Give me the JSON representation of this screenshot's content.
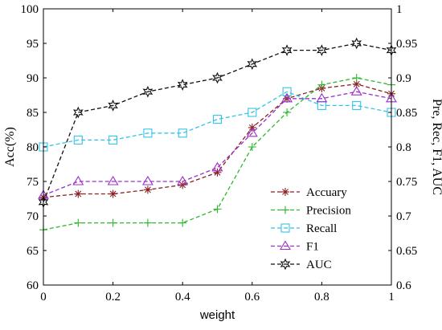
{
  "chart_data": {
    "type": "line",
    "xlabel": "weight",
    "ylabel_left": "Acc(%)",
    "ylabel_right": "Pre, Rec, F1, AUC",
    "xlim": [
      0,
      1
    ],
    "ylim_left": [
      60,
      100
    ],
    "ylim_right": [
      0.6,
      1.0
    ],
    "x_ticks": [
      "0",
      "0.2",
      "0.4",
      "0.6",
      "0.8",
      "1"
    ],
    "y_left_ticks": [
      "60",
      "65",
      "70",
      "75",
      "80",
      "85",
      "90",
      "95",
      "100"
    ],
    "y_right_ticks": [
      "0.6",
      "0.65",
      "0.7",
      "0.75",
      "0.8",
      "0.85",
      "0.9",
      "0.95",
      "1"
    ],
    "grid": false,
    "legend_position": "bottom-right",
    "x": [
      0,
      0.1,
      0.2,
      0.3,
      0.4,
      0.5,
      0.6,
      0.7,
      0.8,
      0.9,
      1.0
    ],
    "series": [
      {
        "name": "Accuary",
        "axis": "left",
        "color": "#8b2020",
        "marker": "asterisk",
        "values": [
          72.7,
          73.2,
          73.2,
          73.8,
          74.5,
          76.3,
          82.8,
          87.0,
          88.5,
          89.1,
          87.7
        ]
      },
      {
        "name": "Precision",
        "axis": "right",
        "color": "#2db82d",
        "marker": "plus",
        "values": [
          0.68,
          0.69,
          0.69,
          0.69,
          0.69,
          0.71,
          0.8,
          0.85,
          0.89,
          0.9,
          0.89
        ]
      },
      {
        "name": "Recall",
        "axis": "right",
        "color": "#33c4e8",
        "marker": "square",
        "values": [
          0.8,
          0.81,
          0.81,
          0.82,
          0.82,
          0.84,
          0.85,
          0.88,
          0.86,
          0.86,
          0.85
        ]
      },
      {
        "name": "F1",
        "axis": "right",
        "color": "#9b30c8",
        "marker": "triangle",
        "values": [
          0.73,
          0.75,
          0.75,
          0.75,
          0.75,
          0.77,
          0.82,
          0.87,
          0.87,
          0.88,
          0.87
        ]
      },
      {
        "name": "AUC",
        "axis": "right",
        "color": "#111111",
        "marker": "star",
        "values": [
          0.72,
          0.85,
          0.86,
          0.88,
          0.89,
          0.9,
          0.92,
          0.94,
          0.94,
          0.95,
          0.94
        ]
      }
    ]
  }
}
